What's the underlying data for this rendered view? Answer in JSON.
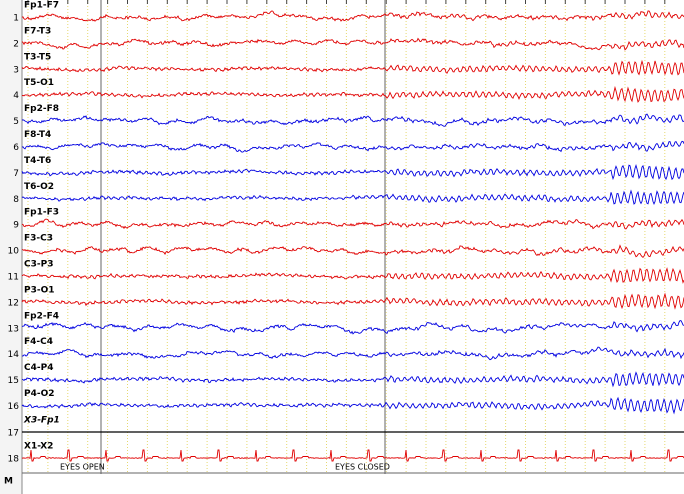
{
  "channels": [
    {
      "number": 1,
      "label": "Fp1-F7",
      "color": "#e00000"
    },
    {
      "number": 2,
      "label": "F7-T3",
      "color": "#e00000"
    },
    {
      "number": 3,
      "label": "T3-T5",
      "color": "#e00000"
    },
    {
      "number": 4,
      "label": "T5-O1",
      "color": "#e00000"
    },
    {
      "number": 5,
      "label": "Fp2-F8",
      "color": "#0000e0"
    },
    {
      "number": 6,
      "label": "F8-T4",
      "color": "#0000e0"
    },
    {
      "number": 7,
      "label": "T4-T6",
      "color": "#0000e0"
    },
    {
      "number": 8,
      "label": "T6-O2",
      "color": "#0000e0"
    },
    {
      "number": 9,
      "label": "Fp1-F3",
      "color": "#e00000"
    },
    {
      "number": 10,
      "label": "F3-C3",
      "color": "#e00000"
    },
    {
      "number": 11,
      "label": "C3-P3",
      "color": "#e00000"
    },
    {
      "number": 12,
      "label": "P3-O1",
      "color": "#e00000"
    },
    {
      "number": 13,
      "label": "Fp2-F4",
      "color": "#0000e0"
    },
    {
      "number": 14,
      "label": "F4-C4",
      "color": "#0000e0"
    },
    {
      "number": 15,
      "label": "C4-P4",
      "color": "#0000e0"
    },
    {
      "number": 16,
      "label": "P4-O2",
      "color": "#0000e0"
    },
    {
      "number": 17,
      "label": "X3-Fp1",
      "color": "#000000"
    },
    {
      "number": 18,
      "label": "X1-X2",
      "color": "#e00000"
    }
  ],
  "marker_row_label": "M",
  "annotations": [
    "EYES OPEN",
    "EYES CLOSED"
  ]
}
